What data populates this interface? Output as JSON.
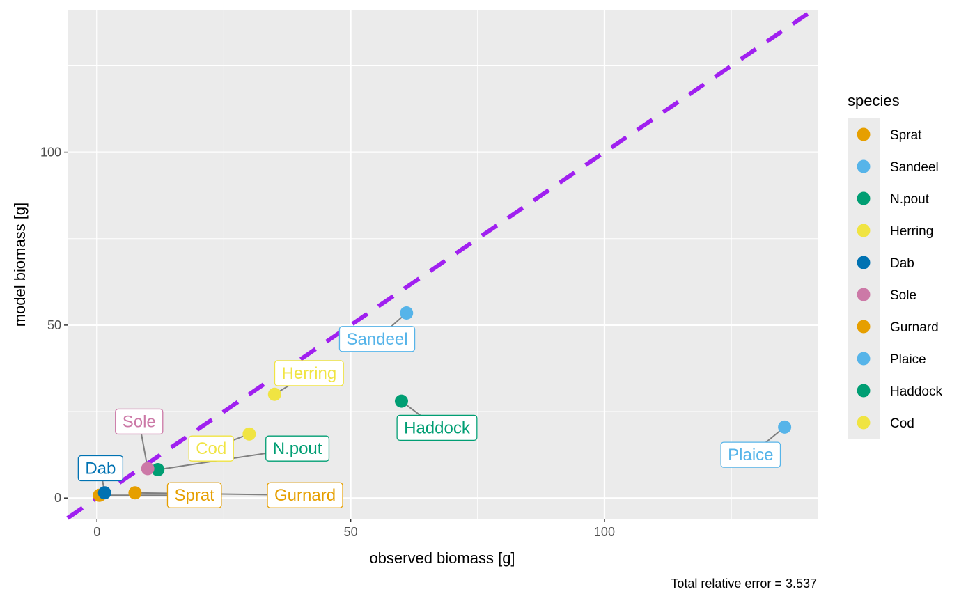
{
  "chart_data": {
    "type": "scatter",
    "title": "",
    "xlabel": "observed biomass [g]",
    "ylabel": "model biomass [g]",
    "xlim": [
      -5.8,
      142
    ],
    "ylim": [
      -6,
      141
    ],
    "x_ticks": [
      0,
      50,
      100
    ],
    "y_ticks": [
      0,
      50,
      100
    ],
    "grid": true,
    "legend_title": "species",
    "legend_position": "right",
    "reference_line": {
      "slope": 1,
      "intercept": 0,
      "style": "dashed",
      "color": "#A020F0"
    },
    "caption": "Total relative error = 3.537",
    "points": [
      {
        "species": "Sprat",
        "x": 0.5,
        "y": 0.8,
        "color": "#E69F00",
        "label_x": 19.2,
        "label_y": 0.8
      },
      {
        "species": "Sandeel",
        "x": 61.0,
        "y": 53.5,
        "color": "#56B4E9",
        "label_x": 55.2,
        "label_y": 46.0
      },
      {
        "species": "N.pout",
        "x": 12.0,
        "y": 8.2,
        "color": "#009E73",
        "label_x": 39.5,
        "label_y": 14.3
      },
      {
        "species": "Herring",
        "x": 35.0,
        "y": 30.0,
        "color": "#F0E442",
        "label_x": 41.8,
        "label_y": 36.1
      },
      {
        "species": "Dab",
        "x": 1.5,
        "y": 1.5,
        "color": "#0072B2",
        "label_x": 0.7,
        "label_y": 8.6
      },
      {
        "species": "Sole",
        "x": 10.0,
        "y": 8.5,
        "color": "#CC79A7",
        "label_x": 8.3,
        "label_y": 22.1
      },
      {
        "species": "Gurnard",
        "x": 7.5,
        "y": 1.5,
        "color": "#E69F00",
        "label_x": 41.0,
        "label_y": 0.8
      },
      {
        "species": "Plaice",
        "x": 135.5,
        "y": 20.5,
        "color": "#56B4E9",
        "label_x": 128.8,
        "label_y": 12.5
      },
      {
        "species": "Haddock",
        "x": 60.0,
        "y": 28.0,
        "color": "#009E73",
        "label_x": 67.0,
        "label_y": 20.3
      },
      {
        "species": "Cod",
        "x": 30.0,
        "y": 18.5,
        "color": "#F0E442",
        "label_x": 22.5,
        "label_y": 14.3
      }
    ]
  }
}
